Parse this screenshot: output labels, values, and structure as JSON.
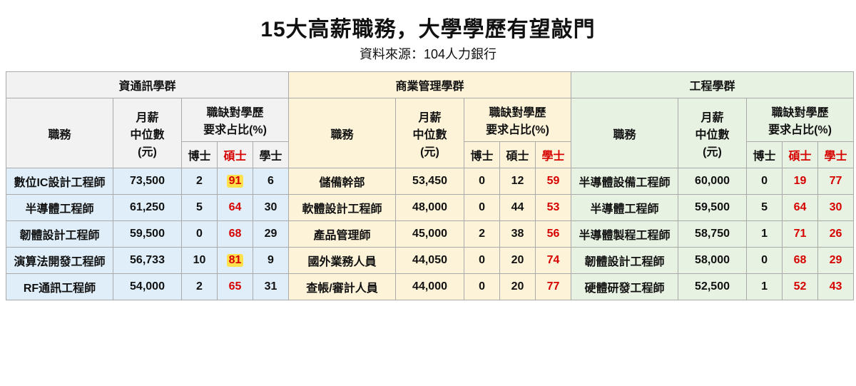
{
  "title": "15大高薪職務，大學學歷有望敲門",
  "subtitle": "資料來源：104人力銀行",
  "labels": {
    "job": "職務",
    "salary_l1": "月薪",
    "salary_l2": "中位數",
    "salary_l3": "(元)",
    "ratio_l1": "職缺對學歷",
    "ratio_l2": "要求占比(%)",
    "phd": "博士",
    "ms": "碩士",
    "bs": "學士"
  },
  "groups": [
    {
      "name": "資通訊學群",
      "header_bg": "#f2f2f2",
      "body_bg": "#dfeef8",
      "red_degree_col": "ms",
      "rows": [
        {
          "job": "數位IC設計工程師",
          "salary": "73,500",
          "phd": "2",
          "ms": "91",
          "bs": "6",
          "hl": "ms"
        },
        {
          "job": "半導體工程師",
          "salary": "61,250",
          "phd": "5",
          "ms": "64",
          "bs": "30"
        },
        {
          "job": "韌體設計工程師",
          "salary": "59,500",
          "phd": "0",
          "ms": "68",
          "bs": "29"
        },
        {
          "job": "演算法開發工程師",
          "salary": "56,733",
          "phd": "10",
          "ms": "81",
          "bs": "9",
          "hl": "ms"
        },
        {
          "job": "RF通訊工程師",
          "salary": "54,000",
          "phd": "2",
          "ms": "65",
          "bs": "31"
        }
      ]
    },
    {
      "name": "商業管理學群",
      "header_bg": "#fdf3d9",
      "body_bg": "#fdf3d9",
      "red_degree_col": "bs",
      "rows": [
        {
          "job": "儲備幹部",
          "salary": "53,450",
          "phd": "0",
          "ms": "12",
          "bs": "59"
        },
        {
          "job": "軟體設計工程師",
          "salary": "48,000",
          "phd": "0",
          "ms": "44",
          "bs": "53"
        },
        {
          "job": "產品管理師",
          "salary": "45,000",
          "phd": "2",
          "ms": "38",
          "bs": "56"
        },
        {
          "job": "國外業務人員",
          "salary": "44,050",
          "phd": "0",
          "ms": "20",
          "bs": "74"
        },
        {
          "job": "查帳/審計人員",
          "salary": "44,000",
          "phd": "0",
          "ms": "20",
          "bs": "77"
        }
      ]
    },
    {
      "name": "工程學群",
      "header_bg": "#e7f2e2",
      "body_bg": "#e7f2e2",
      "red_degree_col": "both",
      "rows": [
        {
          "job": "半導體設備工程師",
          "salary": "60,000",
          "phd": "0",
          "ms": "19",
          "bs": "77"
        },
        {
          "job": "半導體工程師",
          "salary": "59,500",
          "phd": "5",
          "ms": "64",
          "bs": "30"
        },
        {
          "job": "半導體製程工程師",
          "salary": "58,750",
          "phd": "1",
          "ms": "71",
          "bs": "26"
        },
        {
          "job": "韌體設計工程師",
          "salary": "58,000",
          "phd": "0",
          "ms": "68",
          "bs": "29"
        },
        {
          "job": "硬體研發工程師",
          "salary": "52,500",
          "phd": "1",
          "ms": "52",
          "bs": "43"
        }
      ]
    }
  ],
  "style": {
    "border_color": "#aaaaaa",
    "title_fontsize": 30,
    "subtitle_fontsize": 18,
    "cell_fontsize": 16,
    "red": "#d60000",
    "highlight_bg": "#ffe14d",
    "page_bg": "#ffffff"
  }
}
